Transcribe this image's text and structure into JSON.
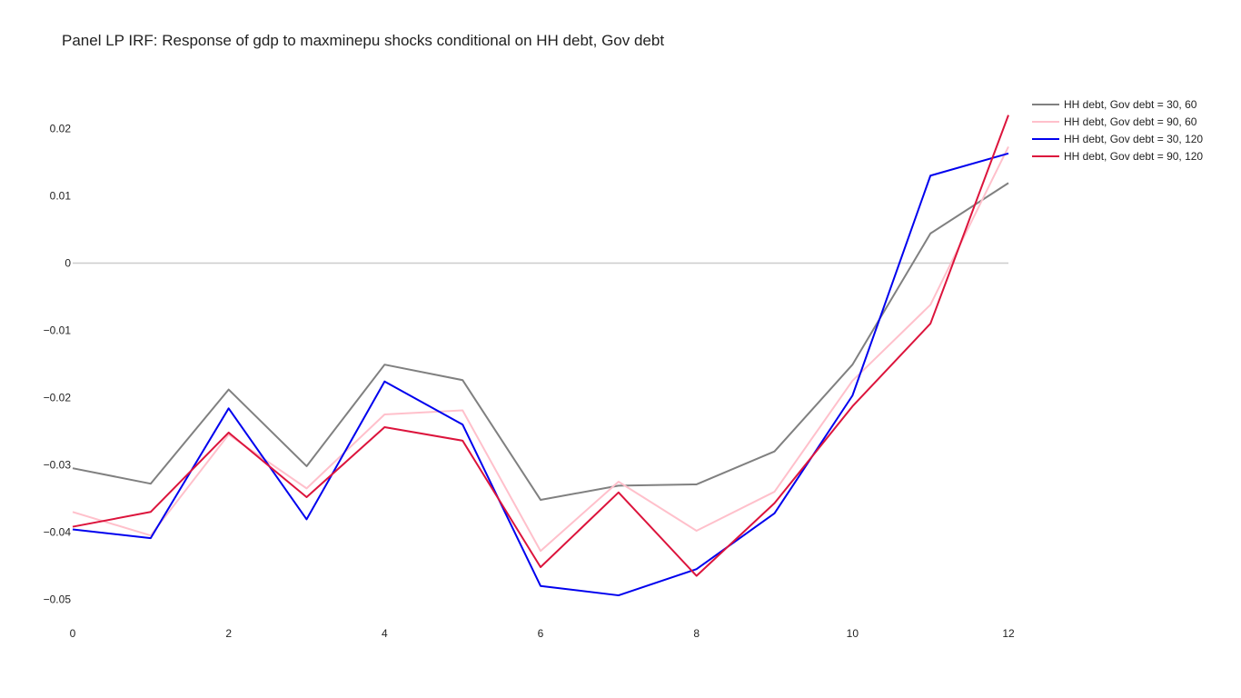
{
  "chart_data": {
    "type": "line",
    "title": "Panel LP IRF: Response of gdp to maxminepu shocks conditional on HH debt, Gov debt",
    "xlabel": "",
    "ylabel": "",
    "x": [
      0,
      1,
      2,
      3,
      4,
      5,
      6,
      7,
      8,
      9,
      10,
      11,
      12
    ],
    "xlim": [
      0,
      12
    ],
    "ylim": [
      -0.0525,
      0.0283
    ],
    "x_ticks": [
      "0",
      "2",
      "4",
      "6",
      "8",
      "10",
      "12"
    ],
    "y_ticks": [
      "0.02",
      "0.01",
      "0",
      "−0.01",
      "−0.02",
      "−0.03",
      "−0.04",
      "−0.05"
    ],
    "grid": false,
    "zero_line": true,
    "legend_position": "top-right",
    "series": [
      {
        "name": "HH debt, Gov debt = 30, 60",
        "color": "#808080",
        "values": [
          -0.0305,
          -0.0328,
          -0.0188,
          -0.0302,
          -0.0151,
          -0.0174,
          -0.0352,
          -0.0331,
          -0.0329,
          -0.028,
          -0.0151,
          0.0044,
          0.0119
        ]
      },
      {
        "name": "HH debt, Gov debt = 90, 60",
        "color": "#ffc0cb",
        "values": [
          -0.037,
          -0.0405,
          -0.0255,
          -0.0335,
          -0.0225,
          -0.0219,
          -0.0428,
          -0.0325,
          -0.0398,
          -0.034,
          -0.0175,
          -0.0062,
          0.0173
        ]
      },
      {
        "name": "HH debt, Gov debt = 30, 120",
        "color": "#0000ee",
        "values": [
          -0.0396,
          -0.0409,
          -0.0216,
          -0.0381,
          -0.0176,
          -0.024,
          -0.048,
          -0.0494,
          -0.0455,
          -0.0372,
          -0.0197,
          0.013,
          0.0163
        ]
      },
      {
        "name": "HH debt, Gov debt = 90, 120",
        "color": "#dc143c",
        "values": [
          -0.0392,
          -0.037,
          -0.0252,
          -0.0348,
          -0.0244,
          -0.0264,
          -0.0452,
          -0.0341,
          -0.0465,
          -0.0357,
          -0.0213,
          -0.009,
          0.022
        ]
      }
    ]
  }
}
